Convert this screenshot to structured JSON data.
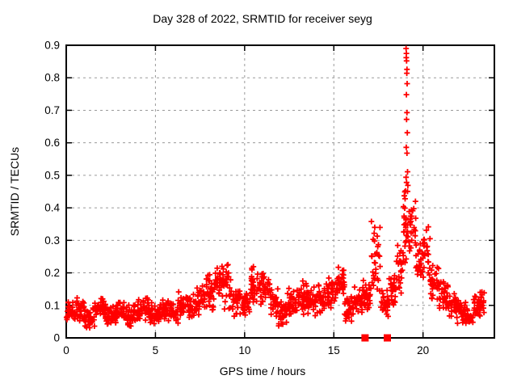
{
  "chart_data": {
    "type": "scatter",
    "title": "Day 328 of 2022, SRMTID for receiver seyg",
    "xlabel": "GPS time / hours",
    "ylabel": "SRMTID / TECUs",
    "xlim": [
      0,
      24
    ],
    "ylim": [
      0,
      0.9
    ],
    "grid": true,
    "grid_color": "#9a9a9a",
    "marker": "plus",
    "marker_color": "#ff0000",
    "legend": "none",
    "xticks": {
      "values": [
        0,
        5,
        10,
        15,
        20
      ],
      "labels": [
        "0",
        "5",
        "10",
        "15",
        "20"
      ]
    },
    "yticks": {
      "values": [
        0,
        0.1,
        0.2,
        0.3,
        0.4,
        0.5,
        0.6,
        0.7,
        0.8,
        0.9
      ],
      "labels": [
        "0",
        "0.1",
        "0.2",
        "0.3",
        "0.4",
        "0.5",
        "0.6",
        "0.7",
        "0.8",
        "0.9"
      ]
    },
    "scatter_bands_note": "dense scatter cloud approximated as [x_start, x_end, y_min, y_max, n_points] segments read from the plot",
    "scatter_bands": [
      [
        0.0,
        0.5,
        0.04,
        0.12,
        30
      ],
      [
        0.5,
        1.0,
        0.05,
        0.13,
        30
      ],
      [
        1.0,
        1.6,
        0.02,
        0.1,
        35
      ],
      [
        1.6,
        2.2,
        0.05,
        0.13,
        35
      ],
      [
        2.2,
        2.8,
        0.03,
        0.11,
        35
      ],
      [
        2.8,
        3.4,
        0.05,
        0.12,
        35
      ],
      [
        3.4,
        4.0,
        0.03,
        0.11,
        35
      ],
      [
        4.0,
        4.6,
        0.05,
        0.13,
        35
      ],
      [
        4.6,
        5.2,
        0.04,
        0.11,
        35
      ],
      [
        5.2,
        5.8,
        0.05,
        0.13,
        35
      ],
      [
        5.8,
        6.3,
        0.04,
        0.12,
        30
      ],
      [
        6.3,
        6.8,
        0.06,
        0.15,
        30
      ],
      [
        6.8,
        7.3,
        0.06,
        0.14,
        30
      ],
      [
        7.3,
        7.8,
        0.07,
        0.17,
        30
      ],
      [
        7.8,
        8.3,
        0.08,
        0.2,
        30
      ],
      [
        8.3,
        8.8,
        0.1,
        0.25,
        30
      ],
      [
        8.8,
        9.3,
        0.08,
        0.26,
        30
      ],
      [
        9.3,
        9.8,
        0.06,
        0.16,
        30
      ],
      [
        9.8,
        10.3,
        0.05,
        0.15,
        30
      ],
      [
        10.3,
        10.9,
        0.08,
        0.24,
        35
      ],
      [
        10.9,
        11.4,
        0.08,
        0.22,
        30
      ],
      [
        11.4,
        11.9,
        0.06,
        0.17,
        30
      ],
      [
        11.9,
        12.4,
        0.03,
        0.12,
        30
      ],
      [
        12.4,
        12.9,
        0.06,
        0.16,
        30
      ],
      [
        12.9,
        13.5,
        0.07,
        0.18,
        35
      ],
      [
        13.5,
        14.1,
        0.06,
        0.16,
        35
      ],
      [
        14.1,
        14.7,
        0.07,
        0.17,
        35
      ],
      [
        14.7,
        15.2,
        0.08,
        0.19,
        30
      ],
      [
        15.2,
        15.6,
        0.1,
        0.23,
        25
      ],
      [
        15.6,
        16.1,
        0.05,
        0.13,
        30
      ],
      [
        16.1,
        16.6,
        0.07,
        0.16,
        30
      ],
      [
        16.6,
        17.1,
        0.08,
        0.19,
        30
      ],
      [
        17.1,
        17.6,
        0.12,
        0.39,
        30
      ],
      [
        17.6,
        18.1,
        0.06,
        0.16,
        30
      ],
      [
        18.1,
        18.5,
        0.08,
        0.22,
        25
      ],
      [
        18.5,
        18.9,
        0.12,
        0.33,
        25
      ],
      [
        18.9,
        19.2,
        0.2,
        0.48,
        25
      ],
      [
        19.2,
        19.6,
        0.22,
        0.45,
        25
      ],
      [
        19.6,
        20.0,
        0.18,
        0.33,
        25
      ],
      [
        20.0,
        20.4,
        0.15,
        0.37,
        25
      ],
      [
        20.4,
        20.9,
        0.1,
        0.25,
        30
      ],
      [
        20.9,
        21.4,
        0.08,
        0.18,
        30
      ],
      [
        21.4,
        21.9,
        0.06,
        0.14,
        30
      ],
      [
        21.9,
        22.4,
        0.04,
        0.12,
        30
      ],
      [
        22.4,
        22.8,
        0.03,
        0.09,
        25
      ],
      [
        22.8,
        23.2,
        0.05,
        0.15,
        25
      ],
      [
        23.2,
        23.45,
        0.06,
        0.17,
        15
      ]
    ],
    "peak_points_note": "individually visible points of the main spike near 19:00 GPS time",
    "peak_points": [
      [
        19.05,
        0.89
      ],
      [
        19.07,
        0.875
      ],
      [
        19.06,
        0.862
      ],
      [
        19.08,
        0.852
      ],
      [
        19.1,
        0.826
      ],
      [
        19.09,
        0.814
      ],
      [
        19.11,
        0.782
      ],
      [
        19.07,
        0.748
      ],
      [
        19.1,
        0.693
      ],
      [
        19.08,
        0.672
      ],
      [
        19.12,
        0.631
      ],
      [
        19.06,
        0.586
      ],
      [
        19.1,
        0.568
      ],
      [
        19.13,
        0.511
      ],
      [
        19.05,
        0.494
      ],
      [
        19.15,
        0.469
      ],
      [
        19.02,
        0.452
      ],
      [
        18.98,
        0.449
      ]
    ],
    "event_markers": {
      "shape": "square",
      "color": "#ff0000",
      "y": 0,
      "x": [
        16.75,
        18.0
      ]
    }
  }
}
